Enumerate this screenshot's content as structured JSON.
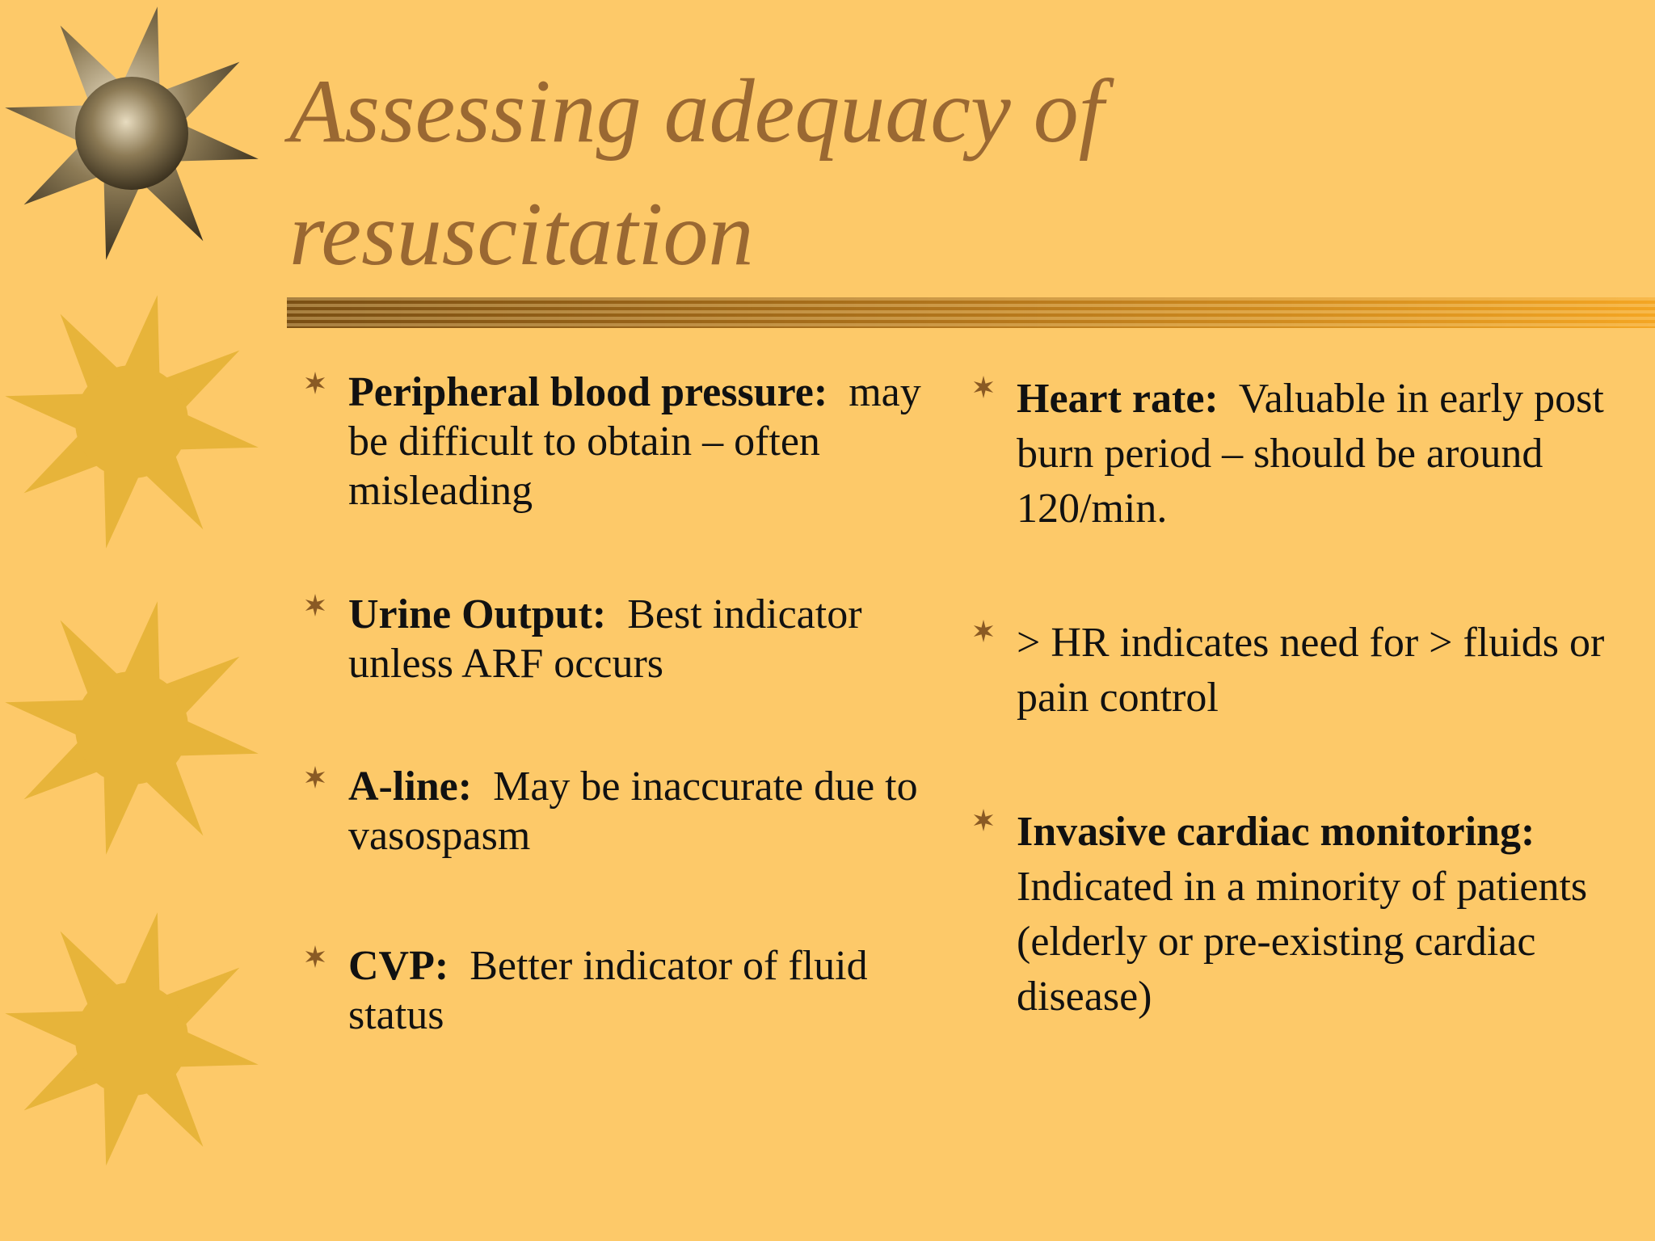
{
  "title": "Assessing adequacy of resuscitation",
  "left": [
    {
      "term": "Peripheral blood pressure:",
      "text": "may be difficult to obtain – often misleading"
    },
    {
      "term": "Urine Output:",
      "text": "Best indicator unless ARF occurs"
    },
    {
      "term": "A-line:",
      "text": "May be inaccurate due to vasospasm"
    },
    {
      "term": "CVP:",
      "text": "Better indicator of fluid status"
    }
  ],
  "right": [
    {
      "term": "Heart rate:",
      "text": "Valuable in early post burn period – should be around 120/min."
    },
    {
      "text": "> HR indicates need for > fluids or pain control"
    },
    {
      "term": "Invasive cardiac monitoring:",
      "text": "Indicated in a minority of patients (elderly or pre-existing cardiac disease)"
    }
  ]
}
